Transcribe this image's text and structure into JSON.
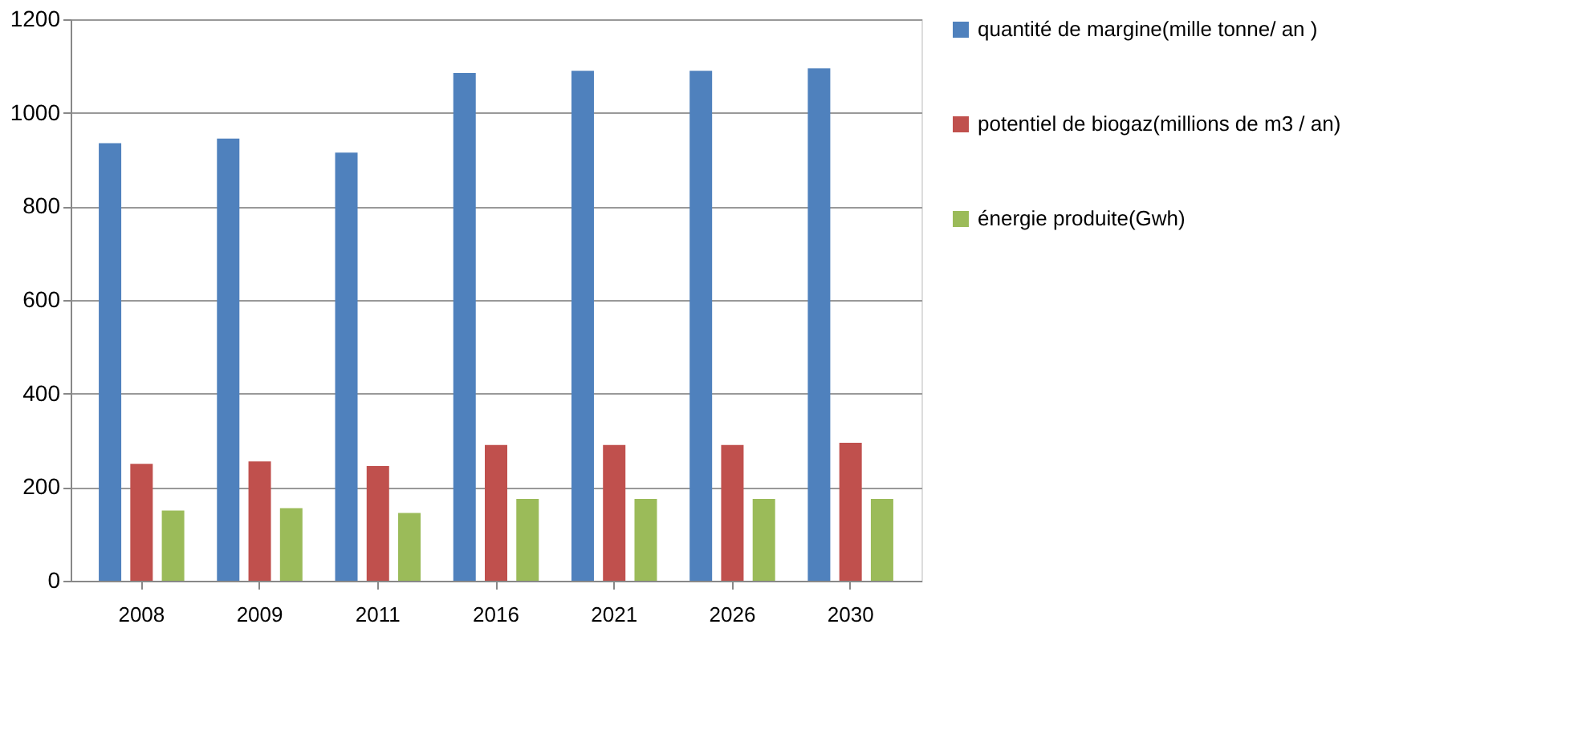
{
  "chart_data": {
    "type": "bar",
    "categories": [
      "2008",
      "2009",
      "2011",
      "2016",
      "2021",
      "2026",
      "2030"
    ],
    "series": [
      {
        "name": "quantité de margine(mille tonne/ an )",
        "color": "#4f81bd",
        "values": [
          935,
          945,
          915,
          1085,
          1090,
          1090,
          1095
        ]
      },
      {
        "name": "potentiel de biogaz(millions de m3 / an)",
        "color": "#c0504d",
        "values": [
          250,
          255,
          245,
          290,
          290,
          290,
          295
        ]
      },
      {
        "name": "énergie produite(Gwh)",
        "color": "#9bbb59",
        "values": [
          150,
          155,
          145,
          175,
          175,
          175,
          175
        ]
      }
    ],
    "ylim": [
      0,
      1200
    ],
    "yticks": [
      0,
      200,
      400,
      600,
      800,
      1000,
      1200
    ],
    "grid": "y",
    "legend": "right"
  }
}
